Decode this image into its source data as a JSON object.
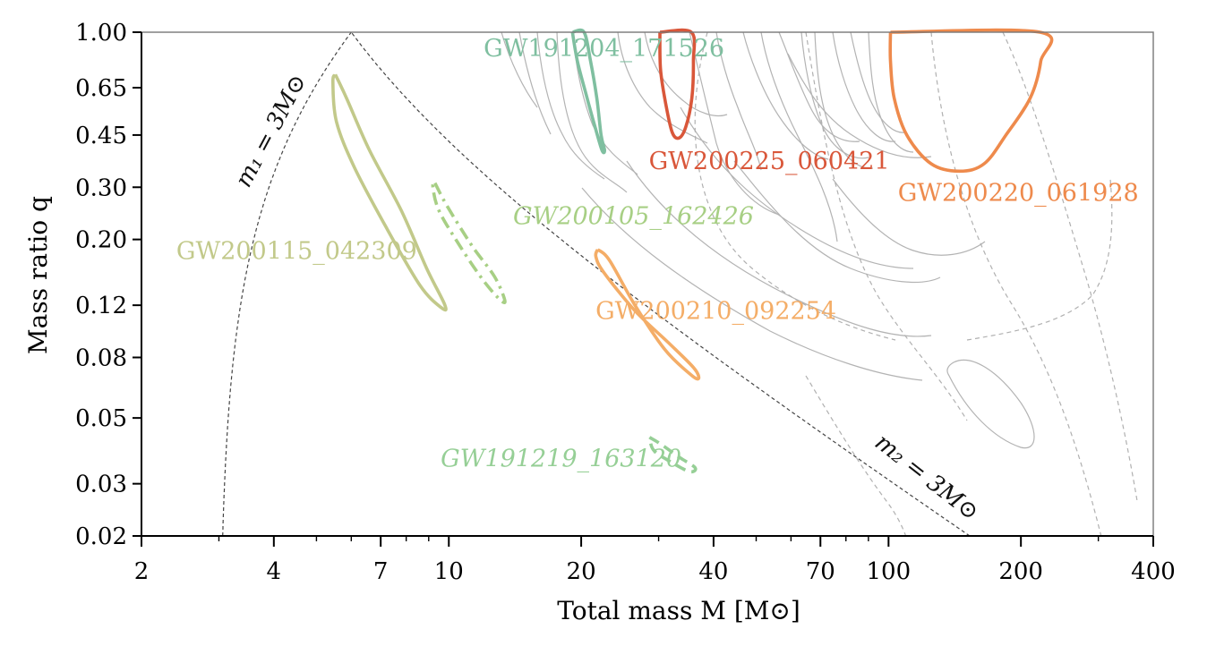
{
  "chart_data": {
    "type": "contour",
    "xlabel": "Total mass M [M⊙]",
    "ylabel": "Mass ratio q",
    "xscale": "log",
    "yscale": "log",
    "xlim": [
      2,
      400
    ],
    "ylim": [
      0.02,
      1.0
    ],
    "xticks": [
      2,
      4,
      7,
      10,
      20,
      40,
      70,
      100,
      200,
      400
    ],
    "xtick_labels": [
      "2",
      "4",
      "7",
      "10",
      "20",
      "40",
      "70",
      "100",
      "200",
      "400"
    ],
    "yticks": [
      0.02,
      0.03,
      0.05,
      0.08,
      0.12,
      0.2,
      0.3,
      0.45,
      0.65,
      1.0
    ],
    "ytick_labels": [
      "0.02",
      "0.03",
      "0.05",
      "0.08",
      "0.12",
      "0.20",
      "0.30",
      "0.45",
      "0.65",
      "1.00"
    ],
    "grid": false,
    "reference_curves": [
      {
        "label": "m₁ = 3M⊙",
        "style": "dashed",
        "color": "#444444"
      },
      {
        "label": "m₂ = 3M⊙",
        "style": "dashed",
        "color": "#444444"
      }
    ],
    "events": [
      {
        "name": "GW191204_171526",
        "color": "#7fbfa0",
        "style": "solid",
        "italic": false,
        "contour": [
          [
            19.1,
            1.0
          ],
          [
            20.3,
            1.0
          ],
          [
            21.0,
            0.8
          ],
          [
            21.7,
            0.6
          ],
          [
            22.2,
            0.45
          ],
          [
            22.6,
            0.4
          ],
          [
            22.3,
            0.4
          ],
          [
            21.5,
            0.48
          ],
          [
            20.5,
            0.62
          ],
          [
            19.6,
            0.8
          ],
          [
            19.1,
            1.0
          ]
        ]
      },
      {
        "name": "GW200225_060421",
        "color": "#d9573a",
        "style": "solid",
        "italic": false,
        "contour": [
          [
            30.2,
            1.0
          ],
          [
            35.6,
            1.0
          ],
          [
            36.0,
            0.8
          ],
          [
            35.7,
            0.6
          ],
          [
            34.6,
            0.48
          ],
          [
            33.4,
            0.44
          ],
          [
            32.2,
            0.46
          ],
          [
            31.1,
            0.58
          ],
          [
            30.3,
            0.75
          ],
          [
            30.2,
            1.0
          ]
        ]
      },
      {
        "name": "GW200220_061928",
        "color": "#ee8a4c",
        "style": "solid",
        "italic": false,
        "contour": [
          [
            101,
            1.0
          ],
          [
            221,
            1.0
          ],
          [
            222,
            0.8
          ],
          [
            210,
            0.6
          ],
          [
            185,
            0.45
          ],
          [
            165,
            0.36
          ],
          [
            145,
            0.34
          ],
          [
            125,
            0.36
          ],
          [
            110,
            0.45
          ],
          [
            103,
            0.6
          ],
          [
            101,
            0.8
          ],
          [
            101,
            1.0
          ]
        ]
      },
      {
        "name": "GW200115_042309",
        "color": "#c2c98a",
        "style": "solid",
        "italic": false,
        "contour": [
          [
            5.52,
            0.72
          ],
          [
            5.85,
            0.6
          ],
          [
            6.6,
            0.4
          ],
          [
            7.8,
            0.25
          ],
          [
            8.9,
            0.16
          ],
          [
            9.8,
            0.12
          ],
          [
            9.6,
            0.118
          ],
          [
            8.6,
            0.14
          ],
          [
            7.2,
            0.22
          ],
          [
            6.1,
            0.35
          ],
          [
            5.55,
            0.5
          ],
          [
            5.45,
            0.68
          ],
          [
            5.52,
            0.72
          ]
        ]
      },
      {
        "name": "GW200105_162426",
        "color": "#a7cf84",
        "style": "dashdot",
        "italic": true,
        "contour": [
          [
            9.3,
            0.31
          ],
          [
            9.9,
            0.26
          ],
          [
            11.3,
            0.19
          ],
          [
            12.7,
            0.15
          ],
          [
            13.4,
            0.125
          ],
          [
            13.1,
            0.125
          ],
          [
            12.0,
            0.145
          ],
          [
            10.6,
            0.19
          ],
          [
            9.5,
            0.25
          ],
          [
            9.2,
            0.3
          ],
          [
            9.3,
            0.31
          ]
        ]
      },
      {
        "name": "GW200210_092254",
        "color": "#f4ad67",
        "style": "solid",
        "italic": false,
        "contour": [
          [
            21.8,
            0.185
          ],
          [
            23.2,
            0.17
          ],
          [
            26.5,
            0.12
          ],
          [
            31.0,
            0.085
          ],
          [
            35.5,
            0.07
          ],
          [
            37.0,
            0.068
          ],
          [
            36.0,
            0.074
          ],
          [
            31.5,
            0.09
          ],
          [
            26.5,
            0.115
          ],
          [
            22.5,
            0.155
          ],
          [
            21.6,
            0.175
          ],
          [
            21.8,
            0.185
          ]
        ]
      },
      {
        "name": "GW191219_163120",
        "color": "#96cf96",
        "style": "dashed",
        "italic": true,
        "contour": [
          [
            28.6,
            0.043
          ],
          [
            30.2,
            0.041
          ],
          [
            33.3,
            0.037
          ],
          [
            36.3,
            0.034
          ],
          [
            35.2,
            0.033
          ],
          [
            31.5,
            0.036
          ],
          [
            29.2,
            0.039
          ],
          [
            28.6,
            0.043
          ]
        ]
      }
    ]
  }
}
